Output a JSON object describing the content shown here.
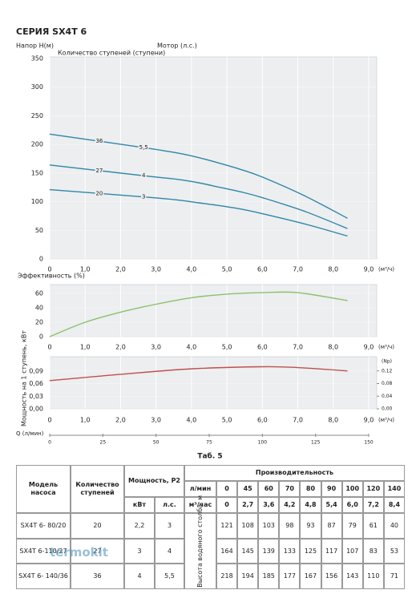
{
  "chart_data": [
    {
      "type": "line",
      "title": "СЕРИЯ SX4T 6",
      "y_label": "Напор H(м)",
      "stages_label": "Количество ступеней (ступени)",
      "motor_label": "Мотор (л.с.)",
      "x_unit": "(м³/ч)",
      "x": [
        0,
        2.7,
        3.6,
        4.2,
        4.8,
        5.4,
        6.0,
        7.2,
        8.4
      ],
      "series": [
        {
          "name": "36",
          "motor": "5,5",
          "color": "#2f86a8",
          "values": [
            218,
            194,
            185,
            177,
            167,
            156,
            143,
            110,
            71
          ]
        },
        {
          "name": "27",
          "motor": "4",
          "color": "#2f86a8",
          "values": [
            164,
            145,
            139,
            133,
            125,
            117,
            107,
            83,
            53
          ]
        },
        {
          "name": "20",
          "motor": "3",
          "color": "#2f86a8",
          "values": [
            121,
            108,
            103,
            98,
            93,
            87,
            79,
            61,
            40
          ]
        }
      ],
      "xlim": [
        0,
        9
      ],
      "xticks": [
        0,
        {
          "value": 1,
          "label": "1,0"
        },
        {
          "value": 2,
          "label": "2,0"
        },
        {
          "value": 3,
          "label": "3,0"
        },
        {
          "value": 4,
          "label": "4,0"
        },
        {
          "value": 5,
          "label": "5,0"
        },
        {
          "value": 6,
          "label": "6,0"
        },
        {
          "value": 7,
          "label": "7,0"
        },
        {
          "value": 8,
          "label": "8,0"
        },
        {
          "value": 9,
          "label": "9,0"
        }
      ],
      "ylim": [
        0,
        350
      ],
      "yticks": [
        0,
        50,
        100,
        150,
        200,
        250,
        300,
        350
      ],
      "grid": true
    },
    {
      "type": "line",
      "y_label": "Эффективность (%)",
      "x_unit": "(м³/ч)",
      "x": [
        0,
        1,
        2,
        3,
        4,
        5,
        6,
        7,
        8.4
      ],
      "series": [
        {
          "color": "#8cc06a",
          "values": [
            0,
            20,
            34,
            45,
            54,
            59,
            61,
            61,
            50
          ]
        }
      ],
      "xlim": [
        0,
        9
      ],
      "xticks": [
        0,
        {
          "value": 1,
          "label": "1,0"
        },
        {
          "value": 2,
          "label": "2,0"
        },
        {
          "value": 3,
          "label": "3,0"
        },
        {
          "value": 4,
          "label": "4,0"
        },
        {
          "value": 5,
          "label": "5,0"
        },
        {
          "value": 6,
          "label": "6,0"
        },
        {
          "value": 7,
          "label": "7,0"
        },
        {
          "value": 8,
          "label": "8,0"
        },
        {
          "value": 9,
          "label": "9,0"
        }
      ],
      "ylim": [
        0,
        70
      ],
      "yticks": [
        0,
        20,
        40,
        60
      ],
      "grid": true
    },
    {
      "type": "line",
      "y_label": "Мощность на 1 ступень, кВт",
      "y2_label": "(Np)",
      "x_unit": "(м³/ч)",
      "x": [
        0,
        2,
        4,
        6,
        7,
        8.4
      ],
      "series": [
        {
          "color": "#c0504d",
          "values": [
            0.067,
            0.082,
            0.095,
            0.1,
            0.098,
            0.09
          ]
        }
      ],
      "xlim": [
        0,
        9
      ],
      "xticks": [
        0,
        {
          "value": 1,
          "label": "1,0"
        },
        {
          "value": 2,
          "label": "2,0"
        },
        {
          "value": 3,
          "label": "3,0"
        },
        {
          "value": 4,
          "label": "4,0"
        },
        {
          "value": 5,
          "label": "5,0"
        },
        {
          "value": 6,
          "label": "6,0"
        },
        {
          "value": 7,
          "label": "7,0"
        },
        {
          "value": 8,
          "label": "8,0"
        },
        {
          "value": 9,
          "label": "9,0"
        }
      ],
      "ylim": [
        0,
        0.12
      ],
      "yticks": [
        {
          "value": 0,
          "label": "0,00"
        },
        {
          "value": 0.03,
          "label": "0,03"
        },
        {
          "value": 0.06,
          "label": "0,06"
        },
        {
          "value": 0.09,
          "label": "0,09"
        }
      ],
      "y2lim": [
        0,
        0.16
      ],
      "y2ticks": [
        {
          "value": 0,
          "label": "0,00"
        },
        {
          "value": 0.04,
          "label": "0,04"
        },
        {
          "value": 0.08,
          "label": "0,08"
        },
        {
          "value": 0.12,
          "label": "0,12"
        }
      ],
      "grid": true
    }
  ],
  "q_axis": {
    "label": "Q (л/мин)",
    "xlim": [
      0,
      150
    ],
    "xticks": [
      0,
      25,
      50,
      75,
      100,
      125,
      150
    ]
  },
  "table": {
    "caption": "Таб. 5",
    "headers": {
      "model": "Модель насоса",
      "stages": "Количество ступеней",
      "power": "Мощность, P2",
      "kw": "кВт",
      "hp": "л.с.",
      "performance": "Производительность",
      "lpm": "л/мин",
      "m3h": "м³/час",
      "head": "Высота водяного столба, м"
    },
    "flows_lpm": [
      0,
      45,
      60,
      70,
      80,
      90,
      100,
      120,
      140
    ],
    "flows_m3h": [
      "0",
      "2,7",
      "3,6",
      "4,2",
      "4,8",
      "5,4",
      "6,0",
      "7,2",
      "8,4"
    ],
    "rows": [
      {
        "model": "SX4T 6- 80/20",
        "stages": 20,
        "kw": "2,2",
        "hp": "3",
        "heads": [
          121,
          108,
          103,
          98,
          93,
          87,
          79,
          61,
          40
        ]
      },
      {
        "model": "SX4T 6-110/27",
        "stages": 27,
        "kw": "3",
        "hp": "4",
        "heads": [
          164,
          145,
          139,
          133,
          125,
          117,
          107,
          83,
          53
        ]
      },
      {
        "model": "SX4T 6- 140/36",
        "stages": 36,
        "kw": "4",
        "hp": "5,5",
        "heads": [
          218,
          194,
          185,
          177,
          167,
          156,
          143,
          110,
          71
        ]
      }
    ]
  },
  "watermark": "termokit"
}
